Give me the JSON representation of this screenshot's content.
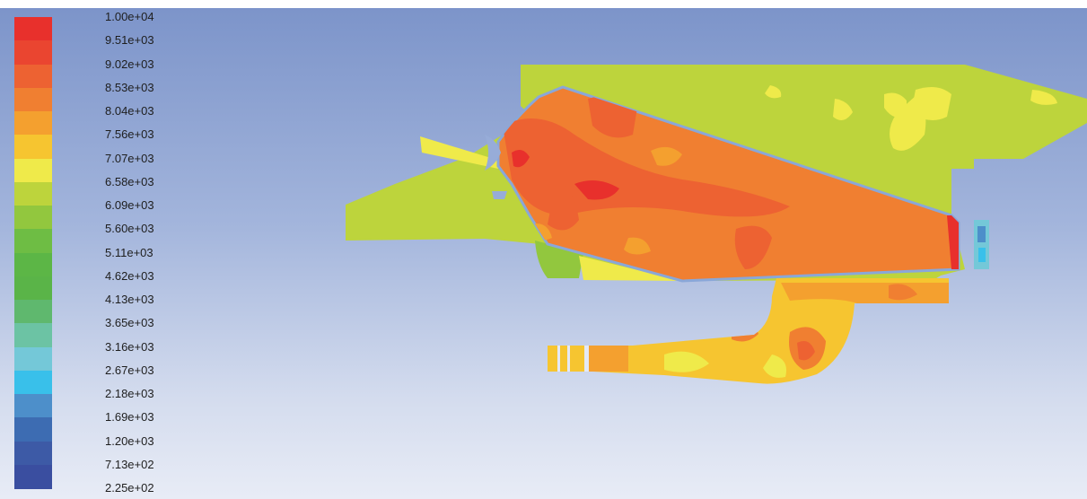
{
  "chart_data": {
    "type": "heatmap",
    "title": "",
    "colorbar": {
      "min": 225,
      "max": 10000,
      "tick_labels": [
        "1.00e+04",
        "9.51e+03",
        "9.02e+03",
        "8.53e+03",
        "8.04e+03",
        "7.56e+03",
        "7.07e+03",
        "6.58e+03",
        "6.09e+03",
        "5.60e+03",
        "5.11e+03",
        "4.62e+03",
        "4.13e+03",
        "3.65e+03",
        "3.16e+03",
        "2.67e+03",
        "2.18e+03",
        "1.69e+03",
        "1.20e+03",
        "7.13e+02",
        "2.25e+02"
      ],
      "band_colors": [
        "#e8302c",
        "#ea4530",
        "#ed6232",
        "#f07f31",
        "#f4a02f",
        "#f6c530",
        "#efea4a",
        "#bdd43c",
        "#92c73e",
        "#6ebd44",
        "#5cb646",
        "#5ab448",
        "#5fb86e",
        "#6cc3a4",
        "#74c8d8",
        "#39c0ea",
        "#4d8fca",
        "#3d6cb2",
        "#3d5aa6",
        "#3a4ea0"
      ]
    },
    "contour_regions": [
      {
        "zone": "outer-left-domain",
        "value": 6600
      },
      {
        "zone": "upper-right-domain",
        "value": 6600
      },
      {
        "zone": "main-body",
        "value": 8300
      },
      {
        "zone": "hot-spots-main",
        "value": 9500
      },
      {
        "zone": "lower-duct",
        "value": 7300
      },
      {
        "zone": "lower-duct-hot-spots",
        "value": 9300
      },
      {
        "zone": "outlet-strip",
        "value": 2500
      }
    ]
  }
}
